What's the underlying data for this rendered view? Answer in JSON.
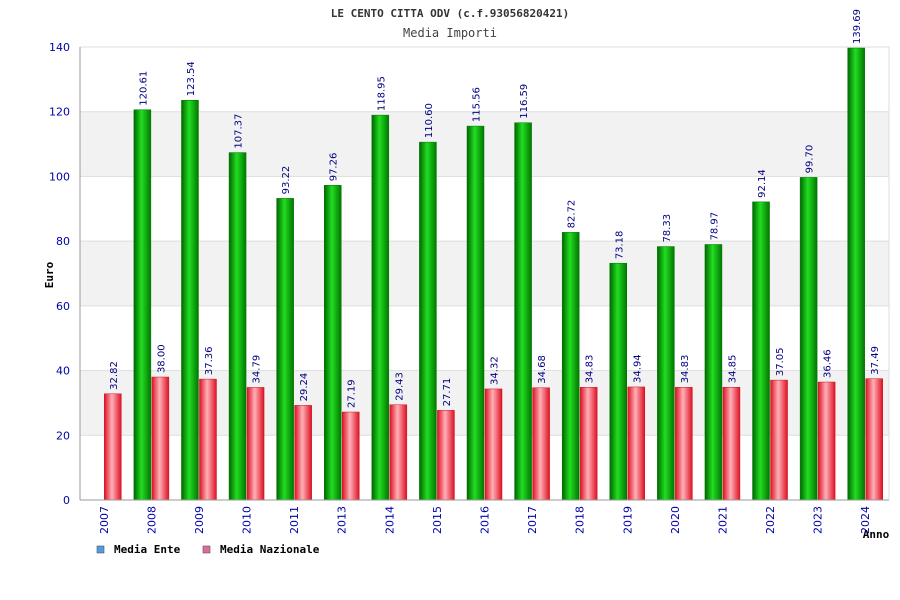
{
  "chart_data": {
    "type": "bar",
    "title": "LE CENTO CITTA ODV (c.f.93056820421)",
    "subtitle": "Media Importi",
    "ylabel": "Euro",
    "xlabel": "Anno",
    "ylim": [
      0,
      140
    ],
    "yticks": [
      "0",
      "20",
      "40",
      "60",
      "80",
      "100",
      "120",
      "140"
    ],
    "grid": true,
    "legend_position": "bottom-left",
    "categories": [
      "2007",
      "2008",
      "2009",
      "2010",
      "2011",
      "2013",
      "2014",
      "2015",
      "2016",
      "2017",
      "2018",
      "2019",
      "2020",
      "2021",
      "2022",
      "2023",
      "2024"
    ],
    "series": [
      {
        "name": "Media Ente",
        "color": "#00aa00",
        "legend_color": "#4d9de0",
        "values": [
          null,
          120.61,
          123.54,
          107.37,
          93.22,
          97.26,
          118.95,
          110.6,
          115.56,
          116.59,
          82.72,
          73.18,
          78.33,
          78.97,
          92.14,
          99.7,
          139.69
        ],
        "labels": [
          "",
          "120.61",
          "123.54",
          "107.37",
          "93.22",
          "97.26",
          "118.95",
          "110.60",
          "115.56",
          "116.59",
          "82.72",
          "73.18",
          "78.33",
          "78.97",
          "92.14",
          "99.70",
          "139.69"
        ]
      },
      {
        "name": "Media Nazionale",
        "color": "#e02a3a",
        "legend_color": "#e06aa0",
        "values": [
          32.82,
          38.0,
          37.36,
          34.79,
          29.24,
          27.19,
          29.43,
          27.71,
          34.32,
          34.68,
          34.83,
          34.94,
          34.83,
          34.85,
          37.05,
          36.46,
          37.49
        ],
        "labels": [
          "32.82",
          "38.00",
          "37.36",
          "34.79",
          "29.24",
          "27.19",
          "29.43",
          "27.71",
          "34.32",
          "34.68",
          "34.83",
          "34.94",
          "34.83",
          "34.85",
          "37.05",
          "36.46",
          "37.49"
        ]
      }
    ]
  }
}
